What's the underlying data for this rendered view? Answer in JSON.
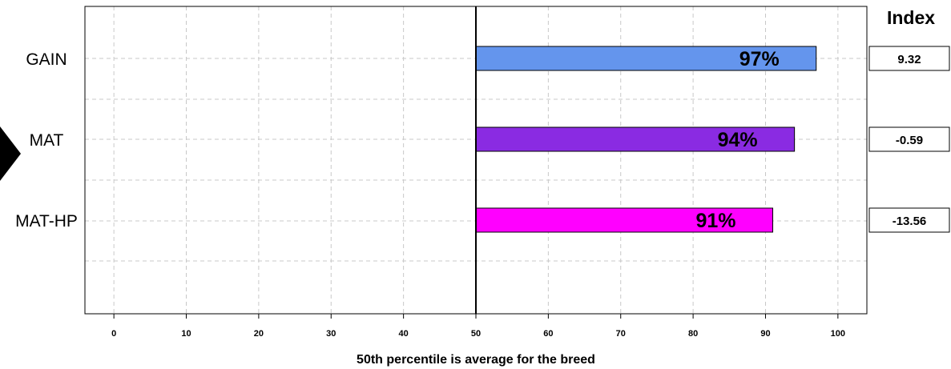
{
  "chart_data": {
    "type": "bar",
    "orientation": "horizontal",
    "categories": [
      "GAIN",
      "MAT",
      "MAT-HP"
    ],
    "values": [
      97,
      94,
      91
    ],
    "value_labels": [
      "97%",
      "94%",
      "91%"
    ],
    "colors": [
      "#6495ED",
      "#8A2BE2",
      "#FF00FF"
    ],
    "reference_line": 50,
    "xlim": [
      -4,
      104
    ],
    "xticks": [
      0,
      10,
      20,
      30,
      40,
      50,
      60,
      70,
      80,
      90,
      100
    ],
    "xlabel": "50th percentile is average for the breed",
    "grid": true,
    "index_title": "Index",
    "index_values": [
      "9.32",
      "-0.59",
      "-13.56"
    ],
    "marker_category": "MAT"
  }
}
